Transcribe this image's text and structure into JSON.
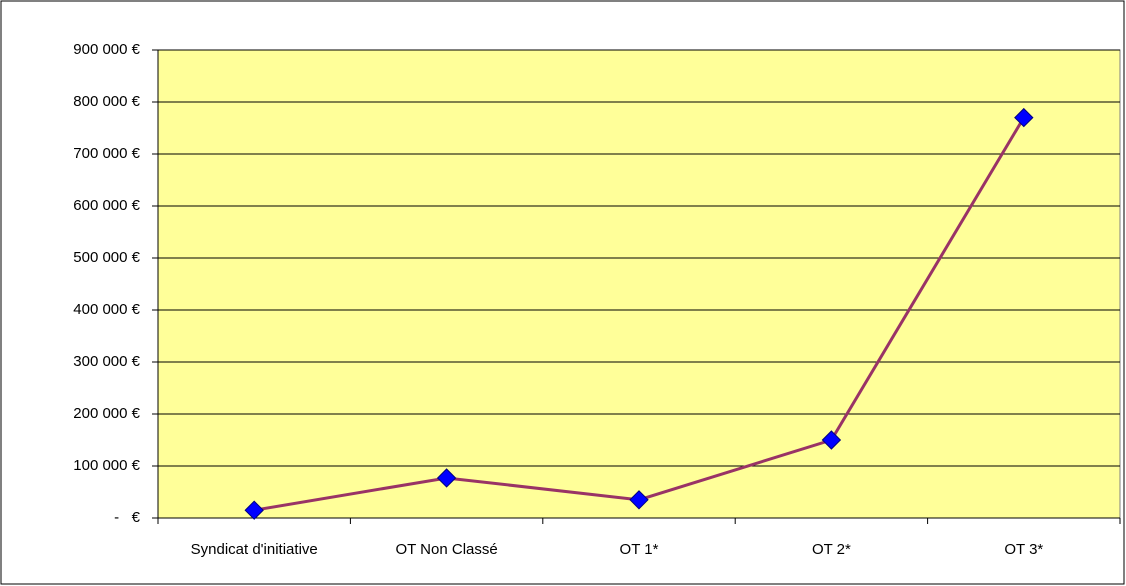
{
  "chart_data": {
    "type": "line",
    "categories": [
      "Syndicat d'initiative",
      "OT Non Classé",
      "OT 1*",
      "OT 2*",
      "OT 3*"
    ],
    "series": [
      {
        "name": "Series 1",
        "color": "#993366",
        "marker_color": "#0000ff",
        "values": [
          15000,
          77000,
          35000,
          150000,
          770000
        ]
      }
    ],
    "ylim": [
      0,
      900000
    ],
    "yticks": [
      {
        "value": 0,
        "label": "-   €"
      },
      {
        "value": 100000,
        "label": "100 000 €"
      },
      {
        "value": 200000,
        "label": "200 000 €"
      },
      {
        "value": 300000,
        "label": "300 000 €"
      },
      {
        "value": 400000,
        "label": "400 000 €"
      },
      {
        "value": 500000,
        "label": "500 000 €"
      },
      {
        "value": 600000,
        "label": "600 000 €"
      },
      {
        "value": 700000,
        "label": "700 000 €"
      },
      {
        "value": 800000,
        "label": "800 000 €"
      },
      {
        "value": 900000,
        "label": "900 000 €"
      }
    ],
    "grid": true,
    "plot_background": "#ffff99"
  }
}
